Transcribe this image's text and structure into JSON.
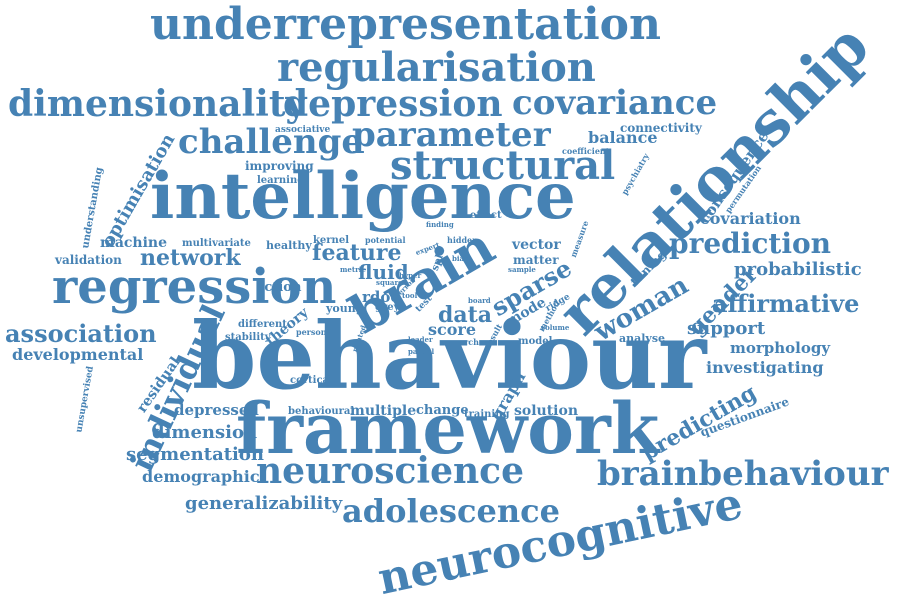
{
  "word_color": "#4682b4",
  "background": "#ffffff",
  "words": [
    "underrepresentation",
    "regularisation",
    "dimensionality",
    "depression",
    "covariance",
    "relationship",
    "parameter",
    "challenge",
    "connectivity",
    "balance",
    "associative",
    "coefficient",
    "structural",
    "improving",
    "optimisation",
    "learning",
    "intelligence",
    "understanding",
    "finding",
    "effect",
    "psychiatry",
    "consequence",
    "permutation",
    "covariation",
    "prediction",
    "machine",
    "multivariate",
    "healthy",
    "kernel",
    "potential",
    "hidden",
    "expert",
    "vector",
    "measure",
    "brain",
    "network",
    "feature",
    "validation",
    "fluid",
    "matter",
    "regression",
    "sparse",
    "sample",
    "tuning",
    "probabilistic",
    "woman",
    "gender",
    "affirmative",
    "action",
    "rdoc",
    "theory",
    "different",
    "young",
    "grey",
    "data",
    "mode",
    "ridge",
    "score",
    "support",
    "association",
    "individual",
    "stability",
    "person",
    "related",
    "leader",
    "research",
    "result",
    "model",
    "analyse",
    "volume",
    "morphology",
    "developmental",
    "behaviour",
    "residual",
    "unsupervised",
    "cortical",
    "investigating",
    "graph",
    "depressed",
    "behavioural",
    "multiple",
    "change",
    "training",
    "solution",
    "framework",
    "dimension",
    "predicting",
    "questionnaire",
    "segmentation",
    "neuroscience",
    "brainbehaviour",
    "demographic",
    "generalizability",
    "adolescence",
    "neurocognitive",
    "hyper",
    "square",
    "test",
    "spl",
    "board",
    "error",
    "method",
    "partial",
    "bias",
    "metric",
    "tool"
  ]
}
